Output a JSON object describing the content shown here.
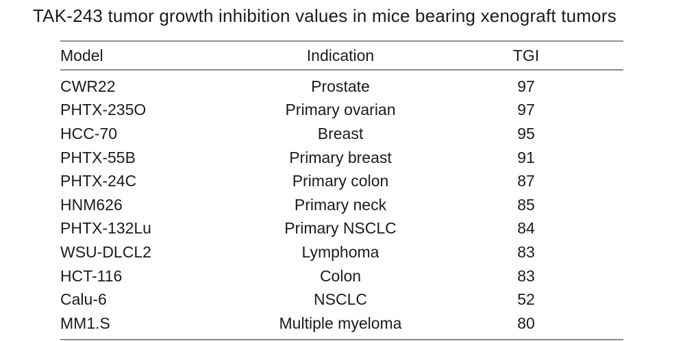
{
  "title": "TAK-243 tumor growth inhibition values in mice bearing xenograft tumors",
  "colors": {
    "text": "#1b1b1b",
    "rule": "#8a8a8a",
    "background": "#ffffff"
  },
  "table": {
    "headers": {
      "model": "Model",
      "indication": "Indication",
      "tgi": "TGI"
    },
    "rows": [
      {
        "model": "CWR22",
        "indication": "Prostate",
        "tgi": "97"
      },
      {
        "model": "PHTX-235O",
        "indication": "Primary ovarian",
        "tgi": "97"
      },
      {
        "model": "HCC-70",
        "indication": "Breast",
        "tgi": "95"
      },
      {
        "model": "PHTX-55B",
        "indication": "Primary breast",
        "tgi": "91"
      },
      {
        "model": "PHTX-24C",
        "indication": "Primary colon",
        "tgi": "87"
      },
      {
        "model": "HNM626",
        "indication": "Primary neck",
        "tgi": "85"
      },
      {
        "model": "PHTX-132Lu",
        "indication": "Primary NSCLC",
        "tgi": "84"
      },
      {
        "model": "WSU-DLCL2",
        "indication": "Lymphoma",
        "tgi": "83"
      },
      {
        "model": "HCT-116",
        "indication": "Colon",
        "tgi": "83"
      },
      {
        "model": "Calu-6",
        "indication": "NSCLC",
        "tgi": "52"
      },
      {
        "model": "MM1.S",
        "indication": "Multiple myeloma",
        "tgi": "80"
      }
    ]
  }
}
